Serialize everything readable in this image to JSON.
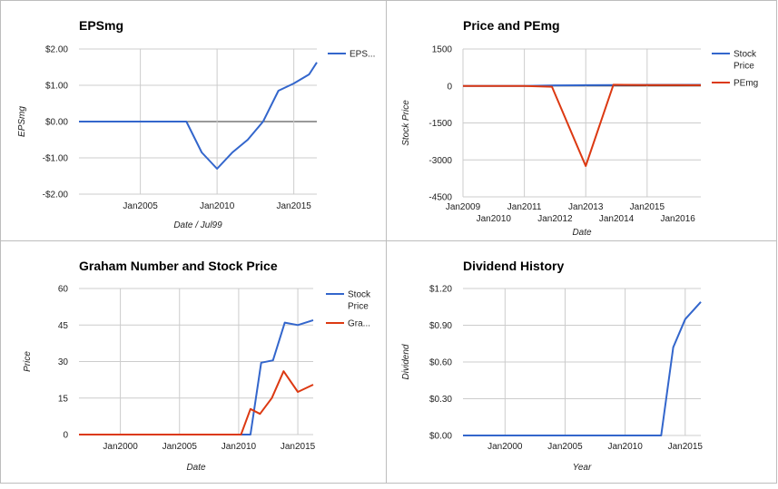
{
  "chart_data": [
    {
      "id": "eps",
      "type": "line",
      "title": "EPSmg",
      "xlabel": "Date / Jul99",
      "ylabel": "EPSmg",
      "xlim": [
        2001.0,
        2016.5
      ],
      "ylim": [
        -2,
        2
      ],
      "y_ticks": [
        2,
        1,
        0,
        -1,
        -2
      ],
      "y_tick_labels": [
        "$2.00",
        "$1.00",
        "$0.00",
        "-$1.00",
        "-$2.00"
      ],
      "x_ticks": [
        2005,
        2010,
        2015
      ],
      "x_tick_labels": [
        "Jan2005",
        "Jan2010",
        "Jan2015"
      ],
      "x_grid": [
        2005,
        2010,
        2015
      ],
      "legend": "right",
      "series": [
        {
          "name": "EPS...",
          "color": "#3366cc",
          "x": [
            2001.0,
            2002.0,
            2003.0,
            2004.0,
            2005.0,
            2006.0,
            2007.0,
            2008.0,
            2009.0,
            2010.0,
            2011.0,
            2012.0,
            2013.0,
            2014.0,
            2015.0,
            2016.0,
            2016.5
          ],
          "y": [
            0,
            0,
            0,
            0,
            0,
            0,
            0,
            0,
            -0.85,
            -1.3,
            -0.85,
            -0.5,
            0,
            0.85,
            1.05,
            1.3,
            1.63
          ]
        }
      ]
    },
    {
      "id": "pe",
      "type": "line",
      "title": "Price and PEmg",
      "xlabel": "Date",
      "ylabel": "Stock Price",
      "xlim": [
        2009.0,
        2016.75
      ],
      "ylim": [
        -4500,
        1500
      ],
      "y_ticks": [
        1500,
        0,
        -1500,
        -3000,
        -4500
      ],
      "y_tick_labels": [
        "1500",
        "0",
        "-1500",
        "-3000",
        "-4500"
      ],
      "x_ticks_row1": [
        2009,
        2011,
        2013,
        2015
      ],
      "x_tick_labels_row1": [
        "Jan2009",
        "Jan2011",
        "Jan2013",
        "Jan2015"
      ],
      "x_ticks_row2": [
        2010,
        2012,
        2014,
        2016
      ],
      "x_tick_labels_row2": [
        "Jan2010",
        "Jan2012",
        "Jan2014",
        "Jan2016"
      ],
      "x_grid": [
        2009,
        2011,
        2013,
        2015
      ],
      "legend": "right",
      "series": [
        {
          "name_lines": [
            "Stock",
            "Price"
          ],
          "color": "#3366cc",
          "x": [
            2009.0,
            2010.0,
            2011.0,
            2012.0,
            2013.0,
            2014.0,
            2015.0,
            2016.0,
            2016.75
          ],
          "y": [
            0,
            0,
            2,
            25,
            30,
            40,
            45,
            45,
            47
          ]
        },
        {
          "name_lines": [
            "PEmg"
          ],
          "color": "#dc3912",
          "x": [
            2009.0,
            2010.0,
            2011.0,
            2011.9,
            2013.0,
            2013.9,
            2015.0,
            2016.0,
            2016.75
          ],
          "y": [
            0,
            0,
            0,
            -30,
            -3250,
            50,
            40,
            35,
            30
          ]
        }
      ]
    },
    {
      "id": "graham",
      "type": "line",
      "title": "Graham Number and Stock Price",
      "xlabel": "Date",
      "ylabel": "Price",
      "xlim": [
        1996.5,
        2016.3
      ],
      "ylim": [
        0,
        60
      ],
      "y_ticks": [
        60,
        45,
        30,
        15,
        0
      ],
      "y_tick_labels": [
        "60",
        "45",
        "30",
        "15",
        "0"
      ],
      "x_ticks": [
        2000,
        2005,
        2010,
        2015
      ],
      "x_tick_labels": [
        "Jan2000",
        "Jan2005",
        "Jan2010",
        "Jan2015"
      ],
      "x_grid": [
        2000,
        2005,
        2010,
        2015
      ],
      "legend": "right",
      "series": [
        {
          "name_lines": [
            "Stock",
            "Price"
          ],
          "color": "#3366cc",
          "x": [
            1996.5,
            1998,
            2000,
            2002,
            2004,
            2006,
            2008,
            2010,
            2011.0,
            2011.9,
            2012.9,
            2013.9,
            2015.0,
            2016.3
          ],
          "y": [
            0,
            0,
            0,
            0,
            0,
            0,
            0,
            0,
            0,
            29.5,
            30.5,
            46,
            45,
            47
          ]
        },
        {
          "name_lines": [
            "Gra..."
          ],
          "color": "#dc3912",
          "x": [
            1996.5,
            1998,
            2000,
            2002,
            2004,
            2006,
            2008,
            2010,
            2010.2,
            2011.0,
            2011.8,
            2012.8,
            2013.8,
            2015.0,
            2016.3
          ],
          "y": [
            0,
            0,
            0,
            0,
            0,
            0,
            0,
            0,
            0,
            10.5,
            8.5,
            15,
            26,
            17.5,
            20.5
          ]
        }
      ]
    },
    {
      "id": "dividend",
      "type": "line",
      "title": "Dividend History",
      "xlabel": "Year",
      "ylabel": "Dividend",
      "xlim": [
        1996.5,
        2016.3
      ],
      "ylim": [
        0,
        1.2
      ],
      "y_ticks": [
        1.2,
        0.9,
        0.6,
        0.3,
        0
      ],
      "y_tick_labels": [
        "$1.20",
        "$0.90",
        "$0.60",
        "$0.30",
        "$0.00"
      ],
      "x_ticks": [
        2000,
        2005,
        2010,
        2015
      ],
      "x_tick_labels": [
        "Jan2000",
        "Jan2005",
        "Jan2010",
        "Jan2015"
      ],
      "x_grid": [
        2000,
        2005,
        2010,
        2015
      ],
      "legend": "none",
      "series": [
        {
          "color": "#3366cc",
          "x": [
            1996.5,
            2000,
            2005,
            2010,
            2013.0,
            2014.0,
            2015.0,
            2016.3
          ],
          "y": [
            0,
            0,
            0,
            0,
            0,
            0.72,
            0.95,
            1.09
          ]
        }
      ]
    }
  ]
}
